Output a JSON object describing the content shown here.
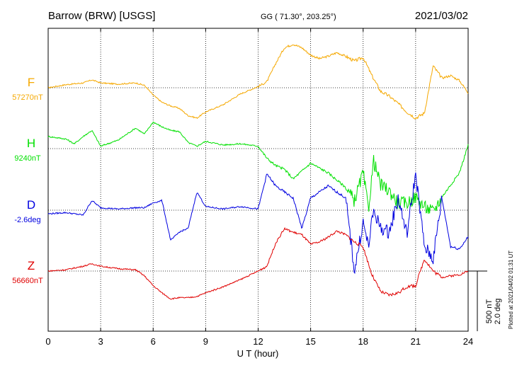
{
  "header": {
    "station": "Barrow (BRW)  [USGS]",
    "coords": "GG ( 71.30°, 203.25°)",
    "date": "2021/03/02"
  },
  "footer": {
    "plotted": "Plotted at 2021/04/02 01:31  UT"
  },
  "scale": {
    "nt": "500 nT",
    "deg": "2.0 deg"
  },
  "chart_data": {
    "type": "line",
    "xlabel": "U T (hour)",
    "xlim": [
      0,
      24
    ],
    "xticks": [
      0,
      3,
      6,
      9,
      12,
      15,
      18,
      21,
      24
    ],
    "xtick_labels": [
      "0",
      "3",
      "6",
      "9",
      "12",
      "15",
      "18",
      "21",
      "24"
    ],
    "grid": true,
    "series": [
      {
        "name": "F",
        "baseline": "57270nT",
        "color": "#f5a800",
        "x": [
          0,
          1,
          2,
          2.5,
          3,
          4,
          5,
          5.5,
          6,
          6.5,
          7,
          7.5,
          8,
          8.5,
          9,
          10,
          11,
          12,
          12.5,
          13,
          13.5,
          14,
          14.5,
          15,
          15.5,
          16,
          16.5,
          17,
          17.5,
          18,
          18.5,
          19,
          19.5,
          20,
          20.5,
          21,
          21.5,
          22,
          22.5,
          23,
          23.5,
          24
        ],
        "y": [
          0,
          25,
          40,
          65,
          40,
          30,
          40,
          20,
          -60,
          -120,
          -150,
          -170,
          -230,
          -250,
          -200,
          -140,
          -50,
          10,
          50,
          200,
          330,
          360,
          330,
          270,
          240,
          260,
          290,
          260,
          220,
          250,
          100,
          -30,
          -70,
          -130,
          -200,
          -250,
          -210,
          180,
          80,
          100,
          60,
          -40
        ]
      },
      {
        "name": "H",
        "baseline": "9240nT",
        "color": "#00e000",
        "x": [
          0,
          1,
          1.5,
          2,
          2.5,
          3,
          4,
          5,
          5.5,
          6,
          6.5,
          7,
          7.5,
          8,
          8.5,
          9,
          10,
          11,
          12,
          12.5,
          13,
          13.5,
          14,
          15,
          16,
          17,
          17.5,
          18,
          18.3,
          18.6,
          19,
          19.5,
          20,
          20.5,
          21,
          21.5,
          22,
          22.5,
          23,
          23.5,
          24
        ],
        "y": [
          100,
          80,
          40,
          100,
          150,
          20,
          70,
          170,
          120,
          220,
          180,
          150,
          140,
          50,
          20,
          60,
          30,
          40,
          20,
          -80,
          -140,
          -170,
          -250,
          -120,
          -200,
          -320,
          -430,
          -200,
          -500,
          -100,
          -300,
          -350,
          -450,
          -450,
          -400,
          -480,
          -520,
          -400,
          -300,
          -200,
          30
        ]
      },
      {
        "name": "D",
        "baseline": "-2.6deg",
        "color": "#0000e0",
        "x": [
          0,
          1,
          2,
          2.5,
          3,
          4,
          5,
          5.5,
          6,
          6.5,
          7,
          7.5,
          8,
          8.5,
          9,
          10,
          11,
          12,
          12.5,
          13,
          13.5,
          14,
          14.5,
          15,
          16,
          17,
          17.5,
          18,
          18.3,
          18.6,
          19,
          19.5,
          20,
          20.5,
          21,
          21.5,
          22,
          22.5,
          23,
          23.5,
          24
        ],
        "y": [
          -30,
          -20,
          -40,
          80,
          20,
          10,
          20,
          20,
          60,
          80,
          -250,
          -180,
          -150,
          150,
          30,
          10,
          30,
          10,
          300,
          200,
          150,
          100,
          -150,
          100,
          200,
          100,
          -500,
          -100,
          -300,
          0,
          -150,
          -180,
          100,
          -200,
          300,
          -300,
          -400,
          100,
          -300,
          -320,
          -220
        ]
      },
      {
        "name": "Z",
        "baseline": "56660nT",
        "color": "#e00000",
        "x": [
          0,
          1,
          2,
          2.5,
          3,
          4,
          5,
          5.5,
          6,
          6.5,
          7,
          7.5,
          8,
          8.5,
          9,
          10,
          11,
          12,
          12.5,
          13,
          13.5,
          14,
          14.5,
          15,
          15.5,
          16,
          16.5,
          17,
          17.5,
          18,
          18.5,
          19,
          19.5,
          20,
          20.5,
          21,
          21.5,
          22,
          22.5,
          23,
          23.5,
          24
        ],
        "y": [
          0,
          10,
          40,
          60,
          40,
          20,
          10,
          -40,
          -120,
          -180,
          -230,
          -220,
          -220,
          -210,
          -180,
          -130,
          -70,
          0,
          40,
          230,
          350,
          320,
          300,
          220,
          240,
          280,
          330,
          300,
          240,
          200,
          -30,
          -170,
          -200,
          -180,
          -130,
          -120,
          100,
          0,
          -50,
          -40,
          -30,
          0
        ]
      }
    ]
  }
}
